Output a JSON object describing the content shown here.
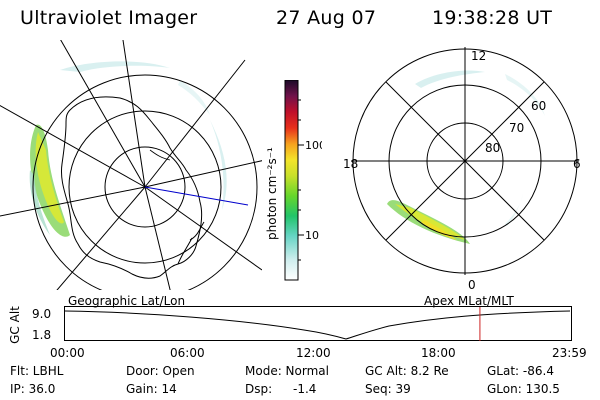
{
  "header": {
    "instrument": "Ultraviolet Imager",
    "date": "27 Aug 07",
    "time": "19:38:28 UT"
  },
  "colorbar": {
    "unit_label": "photon cm⁻²s⁻¹",
    "ticks": [
      "100",
      "10"
    ]
  },
  "right_map": {
    "mlt_labels": {
      "top": "12",
      "left": "18",
      "right": "6",
      "bottom": "0"
    },
    "lat_labels": [
      "60",
      "70",
      "80"
    ]
  },
  "strip": {
    "left_title": "Geographic Lat/Lon",
    "right_title": "Apex MLat/MLT",
    "axis_name": "GC Alt",
    "y_ticks": [
      "9.0",
      "1.8"
    ],
    "x_ticks": [
      "00:00",
      "06:00",
      "12:00",
      "18:00",
      "23:59"
    ],
    "current_time_fraction": 0.82
  },
  "info": {
    "flt": "Flt: LBHL",
    "ip": "IP: 36.0",
    "door": "Door: Open",
    "gain": "Gain: 14",
    "mode": "Mode: Normal",
    "dsp_label": "Dsp:",
    "dsp_value": "-1.4",
    "gcalt": "GC Alt: 8.2 Re",
    "seq": "Seq: 39",
    "glat": "GLat: -86.4",
    "glon": "GLon: 130.5"
  }
}
